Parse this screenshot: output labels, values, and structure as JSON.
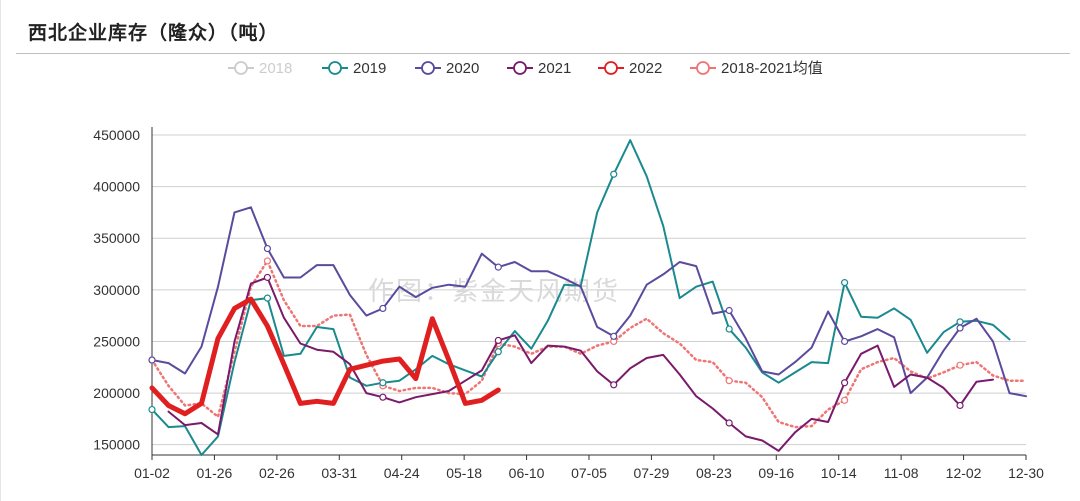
{
  "chart_data": {
    "type": "line",
    "title": "西北企业库存（隆众）（吨）",
    "watermark": "作图：紫金天风期货",
    "xlabel": "",
    "ylabel": "",
    "ylim": [
      140000,
      450000
    ],
    "yticks": [
      150000,
      200000,
      250000,
      300000,
      350000,
      400000,
      450000
    ],
    "x_ticks": [
      "01-02",
      "01-26",
      "02-26",
      "03-31",
      "04-24",
      "05-18",
      "06-10",
      "07-05",
      "07-29",
      "08-23",
      "09-16",
      "10-14",
      "11-08",
      "12-02",
      "12-30"
    ],
    "series": [
      {
        "name": "2018",
        "color": "#cccccc",
        "style": "solid",
        "width": 2,
        "values": []
      },
      {
        "name": "2019",
        "color": "#1a8a8f",
        "style": "solid",
        "width": 2,
        "values": [
          184000,
          167000,
          168000,
          140000,
          158000,
          230000,
          290000,
          292000,
          236000,
          238000,
          264000,
          262000,
          215000,
          207000,
          210000,
          212000,
          223000,
          236000,
          228000,
          222000,
          216000,
          240000,
          260000,
          243000,
          270000,
          305000,
          304000,
          375000,
          412000,
          445000,
          410000,
          362000,
          292000,
          303000,
          308000,
          262000,
          244000,
          220000,
          210000,
          220000,
          230000,
          229000,
          307000,
          274000,
          273000,
          282000,
          271000,
          239000,
          259000,
          269000,
          270000,
          266000,
          252000
        ]
      },
      {
        "name": "2020",
        "color": "#5b4a9e",
        "style": "solid",
        "width": 2,
        "values": [
          232000,
          229000,
          219000,
          245000,
          303000,
          375000,
          380000,
          340000,
          312000,
          312000,
          324000,
          324000,
          295000,
          275000,
          282000,
          303000,
          293000,
          302000,
          305000,
          303000,
          335000,
          322000,
          327000,
          318000,
          318000,
          311000,
          303000,
          264000,
          255000,
          275000,
          305000,
          315000,
          327000,
          323000,
          277000,
          280000,
          253000,
          221000,
          218000,
          230000,
          244000,
          279000,
          250000,
          255000,
          262000,
          254000,
          200000,
          215000,
          241000,
          263000,
          272000,
          250000,
          200000,
          197000
        ]
      },
      {
        "name": "2021",
        "color": "#7a1a6b",
        "style": "solid",
        "width": 2,
        "values": [
          null,
          182000,
          169000,
          171000,
          160000,
          250000,
          306000,
          312000,
          273000,
          248000,
          242000,
          240000,
          228000,
          200000,
          196000,
          191000,
          196000,
          199000,
          202000,
          212000,
          222000,
          251000,
          256000,
          229000,
          246000,
          245000,
          241000,
          221000,
          208000,
          224000,
          234000,
          237000,
          218000,
          197000,
          185000,
          171000,
          158000,
          154000,
          144000,
          162000,
          175000,
          172000,
          210000,
          238000,
          246000,
          206000,
          218000,
          215000,
          205000,
          188000,
          211000,
          213000
        ]
      },
      {
        "name": "2022",
        "color": "#e02020",
        "style": "solid",
        "width": 5,
        "values": [
          205000,
          188000,
          180000,
          190000,
          253000,
          282000,
          291000,
          265000,
          228000,
          190000,
          192000,
          190000,
          223000,
          227000,
          231000,
          233000,
          214000,
          272000,
          232000,
          190000,
          193000,
          203000
        ]
      },
      {
        "name": "2018-2021均值",
        "color": "#ef7575",
        "style": "dotted",
        "width": 2.5,
        "values": [
          232000,
          207000,
          188000,
          190000,
          177000,
          240000,
          303000,
          328000,
          290000,
          265000,
          265000,
          275000,
          276000,
          237000,
          207000,
          202000,
          205000,
          205000,
          200000,
          199000,
          212000,
          248000,
          245000,
          238000,
          245000,
          245000,
          238000,
          246000,
          250000,
          263000,
          272000,
          258000,
          248000,
          232000,
          230000,
          212000,
          210000,
          196000,
          172000,
          167000,
          168000,
          184000,
          193000,
          223000,
          230000,
          234000,
          221000,
          214000,
          220000,
          227000,
          230000,
          217000,
          212000,
          212000
        ]
      }
    ]
  }
}
